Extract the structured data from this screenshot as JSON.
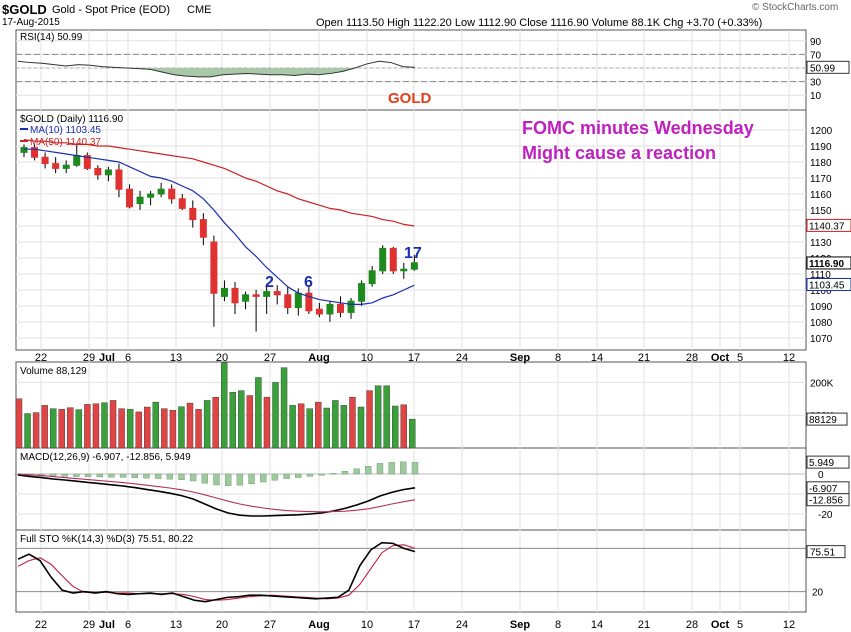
{
  "header": {
    "symbol": "$GOLD",
    "name": "Gold - Spot Price (EOD)",
    "exchange": "CME",
    "date": "17-Aug-2015",
    "quote": "Open 1113.50 High 1122.20 Low 1112.90 Close 1116.90 Volume 88.1K Chg +3.70 (+0.33%)",
    "watermark": "© StockCharts.com"
  },
  "colors": {
    "up": "#1d8a1d",
    "down": "#e03131",
    "ma10": "#1a2fb0",
    "ma50": "#cc2222",
    "annotation": "#c020c0",
    "gold_label": "#e0401a",
    "count_label": "#1a2fb0",
    "volume_up": "#3aa03a",
    "volume_down": "#e04545",
    "histogram": "#9ec89e"
  },
  "chart_data": [
    {
      "type": "line",
      "title": "RSI(14) 50.99",
      "ylim": [
        0,
        100
      ],
      "ticks": [
        10,
        30,
        50,
        70,
        90
      ],
      "reference_lines": [
        30,
        70
      ],
      "last_value_label": "50.99",
      "values": [
        60,
        58,
        57,
        55,
        53,
        55,
        54,
        52,
        51,
        50,
        49,
        48,
        44,
        40,
        38,
        37,
        37,
        40,
        41,
        42,
        41,
        40,
        40,
        39,
        41,
        40,
        42,
        45,
        50,
        56,
        60,
        58,
        52,
        51
      ]
    },
    {
      "type": "candlestick",
      "title": "$GOLD (Daily) 1116.90",
      "ylim": [
        1065,
        1210
      ],
      "ticks": [
        1070,
        1080,
        1090,
        1100,
        1110,
        1120,
        1130,
        1140,
        1150,
        1160,
        1170,
        1180,
        1190,
        1200
      ],
      "x_tick_labels": [
        "22",
        "29",
        "Jul",
        "6",
        "13",
        "20",
        "27",
        "Aug",
        "10",
        "17",
        "24",
        "Sep",
        "8",
        "14",
        "21",
        "28",
        "Oct",
        "5",
        "12"
      ],
      "ohlc": [
        [
          1186,
          1191,
          1183,
          1189
        ],
        [
          1189,
          1191,
          1181,
          1183
        ],
        [
          1183,
          1186,
          1176,
          1179
        ],
        [
          1179,
          1183,
          1173,
          1176
        ],
        [
          1176,
          1181,
          1173,
          1178
        ],
        [
          1178,
          1191,
          1177,
          1184
        ],
        [
          1184,
          1186,
          1175,
          1176
        ],
        [
          1176,
          1178,
          1169,
          1172
        ],
        [
          1172,
          1177,
          1168,
          1175
        ],
        [
          1175,
          1179,
          1158,
          1163
        ],
        [
          1163,
          1166,
          1151,
          1152
        ],
        [
          1154,
          1162,
          1150,
          1158
        ],
        [
          1158,
          1162,
          1153,
          1160
        ],
        [
          1160,
          1167,
          1158,
          1163
        ],
        [
          1163,
          1166,
          1154,
          1157
        ],
        [
          1157,
          1160,
          1150,
          1151
        ],
        [
          1151,
          1156,
          1139,
          1144
        ],
        [
          1144,
          1148,
          1128,
          1133
        ],
        [
          1130,
          1134,
          1077,
          1098
        ],
        [
          1096,
          1106,
          1093,
          1101
        ],
        [
          1101,
          1105,
          1085,
          1092
        ],
        [
          1093,
          1099,
          1088,
          1097
        ],
        [
          1097,
          1100,
          1074,
          1096
        ],
        [
          1096,
          1104,
          1085,
          1099
        ],
        [
          1099,
          1103,
          1091,
          1097
        ],
        [
          1097,
          1102,
          1085,
          1089
        ],
        [
          1089,
          1101,
          1084,
          1098
        ],
        [
          1098,
          1103,
          1085,
          1087
        ],
        [
          1088,
          1092,
          1083,
          1085
        ],
        [
          1085,
          1093,
          1080,
          1091
        ],
        [
          1091,
          1096,
          1083,
          1086
        ],
        [
          1086,
          1095,
          1082,
          1093
        ],
        [
          1093,
          1106,
          1090,
          1104
        ],
        [
          1104,
          1115,
          1102,
          1112
        ],
        [
          1112,
          1128,
          1110,
          1126
        ],
        [
          1126,
          1127,
          1110,
          1112
        ],
        [
          1112,
          1117,
          1107,
          1113
        ],
        [
          1113,
          1122,
          1112,
          1117
        ]
      ],
      "series": [
        {
          "name": "MA(10) 1103.45",
          "values": [
            1188,
            1188,
            1187,
            1186,
            1185,
            1184,
            1183,
            1182,
            1181,
            1180,
            1177,
            1174,
            1171,
            1170,
            1168,
            1165,
            1162,
            1157,
            1150,
            1142,
            1135,
            1127,
            1121,
            1114,
            1108,
            1102,
            1098,
            1096,
            1094,
            1093,
            1092,
            1091,
            1091,
            1092,
            1095,
            1097,
            1100,
            1103
          ]
        },
        {
          "name": "MA(50) 1140.37",
          "values": [
            1194,
            1193,
            1193,
            1192,
            1192,
            1191,
            1191,
            1190,
            1190,
            1189,
            1188,
            1187,
            1186,
            1185,
            1184,
            1183,
            1182,
            1180,
            1178,
            1176,
            1173,
            1170,
            1168,
            1165,
            1162,
            1160,
            1157,
            1155,
            1153,
            1151,
            1150,
            1148,
            1147,
            1146,
            1144,
            1143,
            1141,
            1140
          ]
        }
      ],
      "last_value_labels": [
        "1140.37",
        "1116.90",
        "1103.45"
      ],
      "annotations": [
        "FOMC minutes Wednesday",
        "Might cause a reaction"
      ],
      "label_gold": "GOLD",
      "count_labels": [
        "2",
        "6",
        "17"
      ]
    },
    {
      "type": "bar",
      "title": "Volume 88,129",
      "ylim": [
        0,
        250000
      ],
      "ticks": [
        "100K",
        "200K"
      ],
      "last_value_label": "88129",
      "values": [
        150000,
        105000,
        108000,
        130000,
        120000,
        118000,
        123000,
        117000,
        133000,
        135000,
        138000,
        145000,
        120000,
        118000,
        110000,
        125000,
        140000,
        120000,
        115000,
        126000,
        137000,
        118000,
        145000,
        155000,
        260000,
        170000,
        175000,
        160000,
        215000,
        155000,
        200000,
        245000,
        130000,
        135000,
        120000,
        140000,
        122000,
        145000,
        130000,
        155000,
        125000,
        175000,
        190000,
        190000,
        128000,
        132000,
        88000
      ]
    },
    {
      "type": "line",
      "title": "MACD(12,26,9) -6.907, -12.856, 5.949",
      "ylim": [
        -25,
        10
      ],
      "ticks": [
        "0",
        "-10",
        "-20"
      ],
      "last_value_labels": [
        "5.949",
        "-6.907",
        "-12.856"
      ],
      "series": [
        {
          "name": "MACD",
          "values": [
            -0.5,
            -1.2,
            -1.8,
            -2.5,
            -3.0,
            -3.6,
            -4.2,
            -4.8,
            -5.4,
            -6.0,
            -6.8,
            -7.7,
            -8.6,
            -9.6,
            -10.8,
            -12.5,
            -15.0,
            -17.5,
            -19.5,
            -20.6,
            -21.0,
            -21.0,
            -20.8,
            -20.6,
            -20.4,
            -20.0,
            -19.5,
            -18.5,
            -17.2,
            -15.5,
            -13.5,
            -11.0,
            -9.2,
            -7.8,
            -6.9
          ]
        },
        {
          "name": "Signal",
          "values": [
            0.0,
            -0.4,
            -0.8,
            -1.3,
            -1.8,
            -2.3,
            -2.8,
            -3.3,
            -3.8,
            -4.3,
            -4.9,
            -5.6,
            -6.3,
            -7.0,
            -7.9,
            -9.0,
            -10.4,
            -12.0,
            -13.6,
            -15.0,
            -16.1,
            -17.0,
            -17.7,
            -18.3,
            -18.6,
            -18.8,
            -18.9,
            -18.8,
            -18.6,
            -18.1,
            -17.4,
            -16.3,
            -15.0,
            -13.9,
            -12.9
          ]
        },
        {
          "name": "Histogram",
          "values": [
            -0.5,
            -0.8,
            -1.0,
            -1.2,
            -1.2,
            -1.3,
            -1.4,
            -1.5,
            -1.6,
            -1.7,
            -1.9,
            -2.1,
            -2.3,
            -2.6,
            -2.9,
            -3.5,
            -4.6,
            -5.5,
            -5.9,
            -5.6,
            -4.9,
            -4.0,
            -3.1,
            -2.3,
            -1.8,
            -1.2,
            -0.6,
            0.3,
            1.4,
            2.6,
            3.9,
            5.3,
            5.8,
            6.1,
            5.9
          ]
        }
      ]
    },
    {
      "type": "line",
      "title": "Full STO %K(14,3) %D(3) 75.51, 80.22",
      "ylim": [
        0,
        100
      ],
      "ticks": [
        20,
        80
      ],
      "reference_lines": [
        20,
        80
      ],
      "last_value_label": "75.51",
      "series": [
        {
          "name": "%K",
          "values": [
            65,
            72,
            63,
            40,
            22,
            18,
            20,
            18,
            20,
            17,
            16,
            17,
            18,
            16,
            18,
            13,
            8,
            6,
            9,
            12,
            13,
            15,
            15,
            14,
            13,
            12,
            11,
            10,
            11,
            12,
            22,
            56,
            78,
            88,
            87,
            80,
            75.5
          ]
        },
        {
          "name": "%D",
          "values": [
            55,
            63,
            67,
            58,
            42,
            27,
            19,
            19,
            19,
            18,
            18,
            17,
            17,
            17,
            17,
            16,
            13,
            9,
            8,
            9,
            11,
            13,
            14,
            15,
            14,
            13,
            12,
            11,
            10,
            11,
            15,
            30,
            52,
            74,
            84,
            85,
            80
          ]
        }
      ]
    }
  ]
}
